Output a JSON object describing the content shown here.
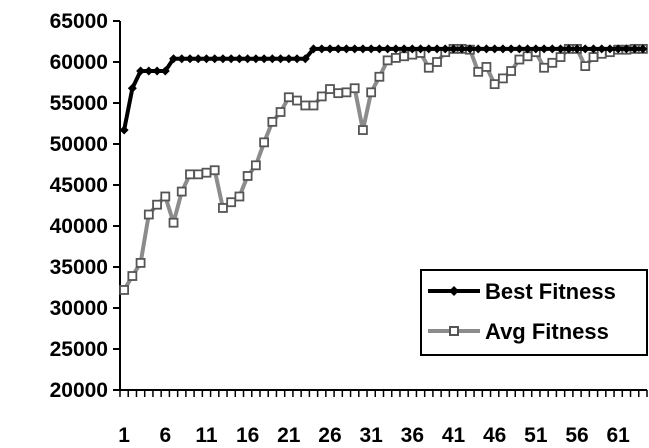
{
  "chart_data": {
    "type": "line",
    "x": [
      1,
      2,
      3,
      4,
      5,
      6,
      7,
      8,
      9,
      10,
      11,
      12,
      13,
      14,
      15,
      16,
      17,
      18,
      19,
      20,
      21,
      22,
      23,
      24,
      25,
      26,
      27,
      28,
      29,
      30,
      31,
      32,
      33,
      34,
      35,
      36,
      37,
      38,
      39,
      40,
      41,
      42,
      43,
      44,
      45,
      46,
      47,
      48,
      49,
      50,
      51,
      52,
      53,
      54,
      55,
      56,
      57,
      58,
      59,
      60,
      61,
      62,
      63,
      64
    ],
    "x_tick_labels": [
      "1",
      "6",
      "11",
      "16",
      "21",
      "26",
      "31",
      "36",
      "41",
      "46",
      "51",
      "56",
      "61"
    ],
    "x_tick_label_values": [
      1,
      6,
      11,
      16,
      21,
      26,
      31,
      36,
      41,
      46,
      51,
      56,
      61
    ],
    "ylim": [
      20000,
      65000
    ],
    "y_ticks": [
      20000,
      25000,
      30000,
      35000,
      40000,
      45000,
      50000,
      55000,
      60000,
      65000
    ],
    "y_tick_labels": [
      "20000",
      "25000",
      "30000",
      "35000",
      "40000",
      "45000",
      "50000",
      "55000",
      "60000",
      "65000"
    ],
    "grid": false,
    "legend_position": "bottom-right",
    "title": "",
    "xlabel": "",
    "ylabel": "",
    "series": [
      {
        "name": "Best Fitness",
        "color": "#000000",
        "marker": "diamond",
        "values": [
          51700,
          56800,
          58900,
          58900,
          58900,
          58900,
          60400,
          60400,
          60400,
          60400,
          60400,
          60400,
          60400,
          60400,
          60400,
          60400,
          60400,
          60400,
          60400,
          60400,
          60400,
          60400,
          60400,
          61600,
          61600,
          61600,
          61600,
          61600,
          61600,
          61600,
          61600,
          61600,
          61600,
          61600,
          61600,
          61600,
          61600,
          61600,
          61600,
          61600,
          61600,
          61600,
          61600,
          61600,
          61600,
          61600,
          61600,
          61600,
          61600,
          61600,
          61600,
          61600,
          61600,
          61600,
          61600,
          61600,
          61600,
          61600,
          61600,
          61600,
          61600,
          61600,
          61600,
          61600
        ]
      },
      {
        "name": "Avg Fitness",
        "color": "#8c8c8c",
        "marker": "square",
        "values": [
          32200,
          33900,
          35500,
          41400,
          42600,
          43600,
          40400,
          44200,
          46300,
          46300,
          46500,
          46800,
          42200,
          42900,
          43600,
          46100,
          47400,
          50200,
          52700,
          53900,
          55700,
          55300,
          54700,
          54700,
          55800,
          56700,
          56200,
          56300,
          56800,
          51700,
          56300,
          58200,
          60200,
          60500,
          60700,
          60900,
          61100,
          59300,
          60000,
          61200,
          61600,
          61600,
          61500,
          58800,
          59400,
          57300,
          58000,
          58900,
          60300,
          60700,
          61200,
          59300,
          59900,
          60600,
          61600,
          61600,
          59500,
          60600,
          61000,
          61200,
          61500,
          61500,
          61600,
          61600
        ]
      }
    ]
  }
}
